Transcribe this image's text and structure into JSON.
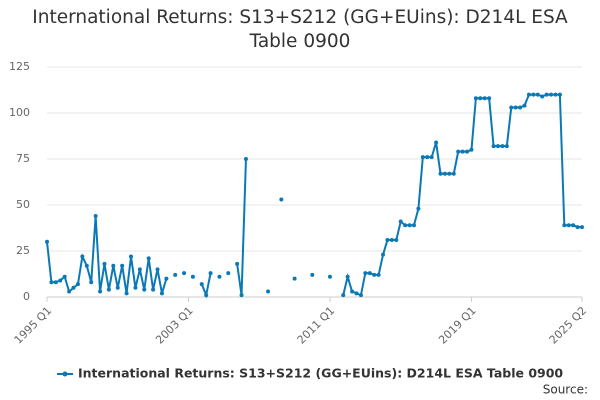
{
  "chart_data": {
    "type": "line",
    "title": "International Returns: S13+S212 (GG+EUins): D214L ESA Table 0900",
    "categories": [
      "1995 Q1",
      null,
      null,
      null,
      null,
      null,
      null,
      null,
      null,
      null,
      null,
      null,
      null,
      null,
      null,
      null,
      null,
      null,
      null,
      null,
      null,
      null,
      null,
      null,
      null,
      null,
      null,
      null,
      null,
      null,
      null,
      null,
      "2003 Q1",
      null,
      null,
      null,
      null,
      null,
      null,
      null,
      null,
      null,
      null,
      null,
      null,
      null,
      null,
      null,
      null,
      null,
      null,
      null,
      null,
      null,
      null,
      null,
      null,
      null,
      null,
      null,
      null,
      null,
      null,
      null,
      "2011 Q1",
      null,
      null,
      null,
      null,
      null,
      null,
      null,
      null,
      null,
      null,
      null,
      null,
      null,
      null,
      null,
      null,
      null,
      null,
      null,
      null,
      null,
      null,
      null,
      null,
      null,
      null,
      null,
      null,
      null,
      null,
      null,
      "2019 Q1",
      null,
      null,
      null,
      null,
      null,
      null,
      null,
      null,
      null,
      null,
      null,
      null,
      null,
      null,
      null,
      null,
      null,
      null,
      null,
      null,
      null,
      null,
      null,
      null,
      "2025 Q2"
    ],
    "series": [
      {
        "name": "International Returns: S13+S212 (GG+EUins): D214L ESA Table 0900",
        "color": "#0a79b6",
        "values": [
          30,
          8,
          8,
          9,
          11,
          3,
          5,
          7,
          22,
          17,
          8,
          44,
          3,
          18,
          4,
          17,
          5,
          17,
          2,
          22,
          5,
          15,
          4,
          21,
          4,
          15,
          2,
          10,
          null,
          12,
          null,
          13,
          null,
          11,
          null,
          7,
          1,
          13,
          null,
          11,
          null,
          13,
          null,
          18,
          1,
          75,
          null,
          null,
          null,
          null,
          3,
          null,
          null,
          53,
          null,
          null,
          10,
          null,
          null,
          null,
          12,
          null,
          null,
          null,
          11,
          null,
          null,
          1,
          11,
          3,
          2,
          1,
          13,
          13,
          12,
          12,
          23,
          31,
          31,
          31,
          41,
          39,
          39,
          39,
          48,
          76,
          76,
          76,
          84,
          67,
          67,
          67,
          67,
          79,
          79,
          79,
          80,
          108,
          108,
          108,
          108,
          82,
          82,
          82,
          82,
          103,
          103,
          103,
          104,
          110,
          110,
          110,
          109,
          110,
          110,
          110,
          110,
          39,
          39,
          39,
          38,
          38
        ]
      }
    ],
    "ylim": [
      0,
      125
    ],
    "yticks": [
      0,
      25,
      50,
      75,
      100,
      125
    ],
    "grid": true,
    "legend": "bottom",
    "source_label": "Source:"
  }
}
